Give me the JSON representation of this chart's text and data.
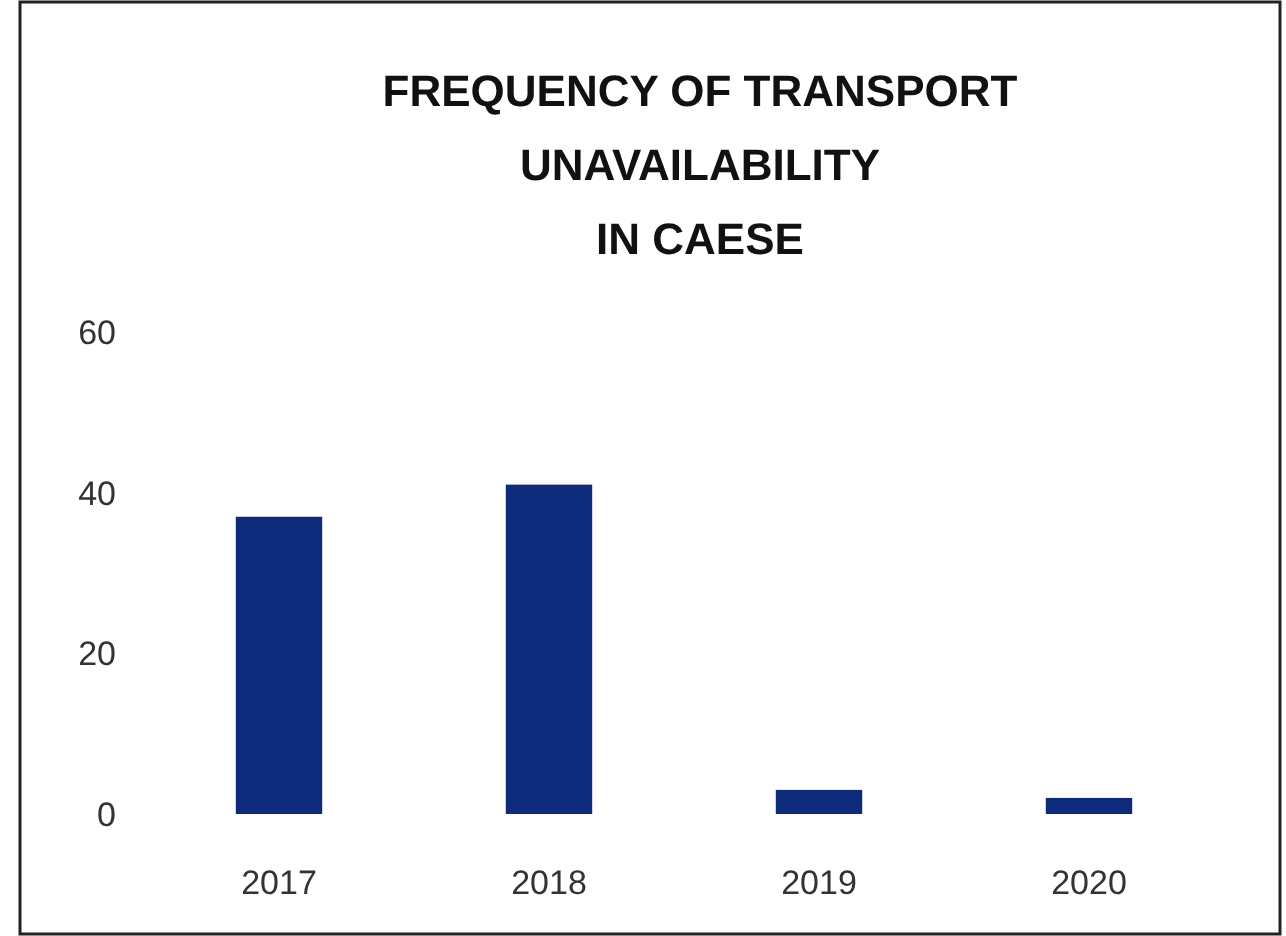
{
  "chart_data": {
    "type": "bar",
    "title": "FREQUENCY OF TRANSPORT\nUNAVAILABILITY\nIN CAESE",
    "categories": [
      "2017",
      "2018",
      "2019",
      "2020"
    ],
    "values": [
      37,
      41,
      3,
      2
    ],
    "color": "#0e2a7a",
    "ylim": [
      0,
      60
    ],
    "yticks": [
      0,
      20,
      40,
      60
    ],
    "grid": false
  }
}
